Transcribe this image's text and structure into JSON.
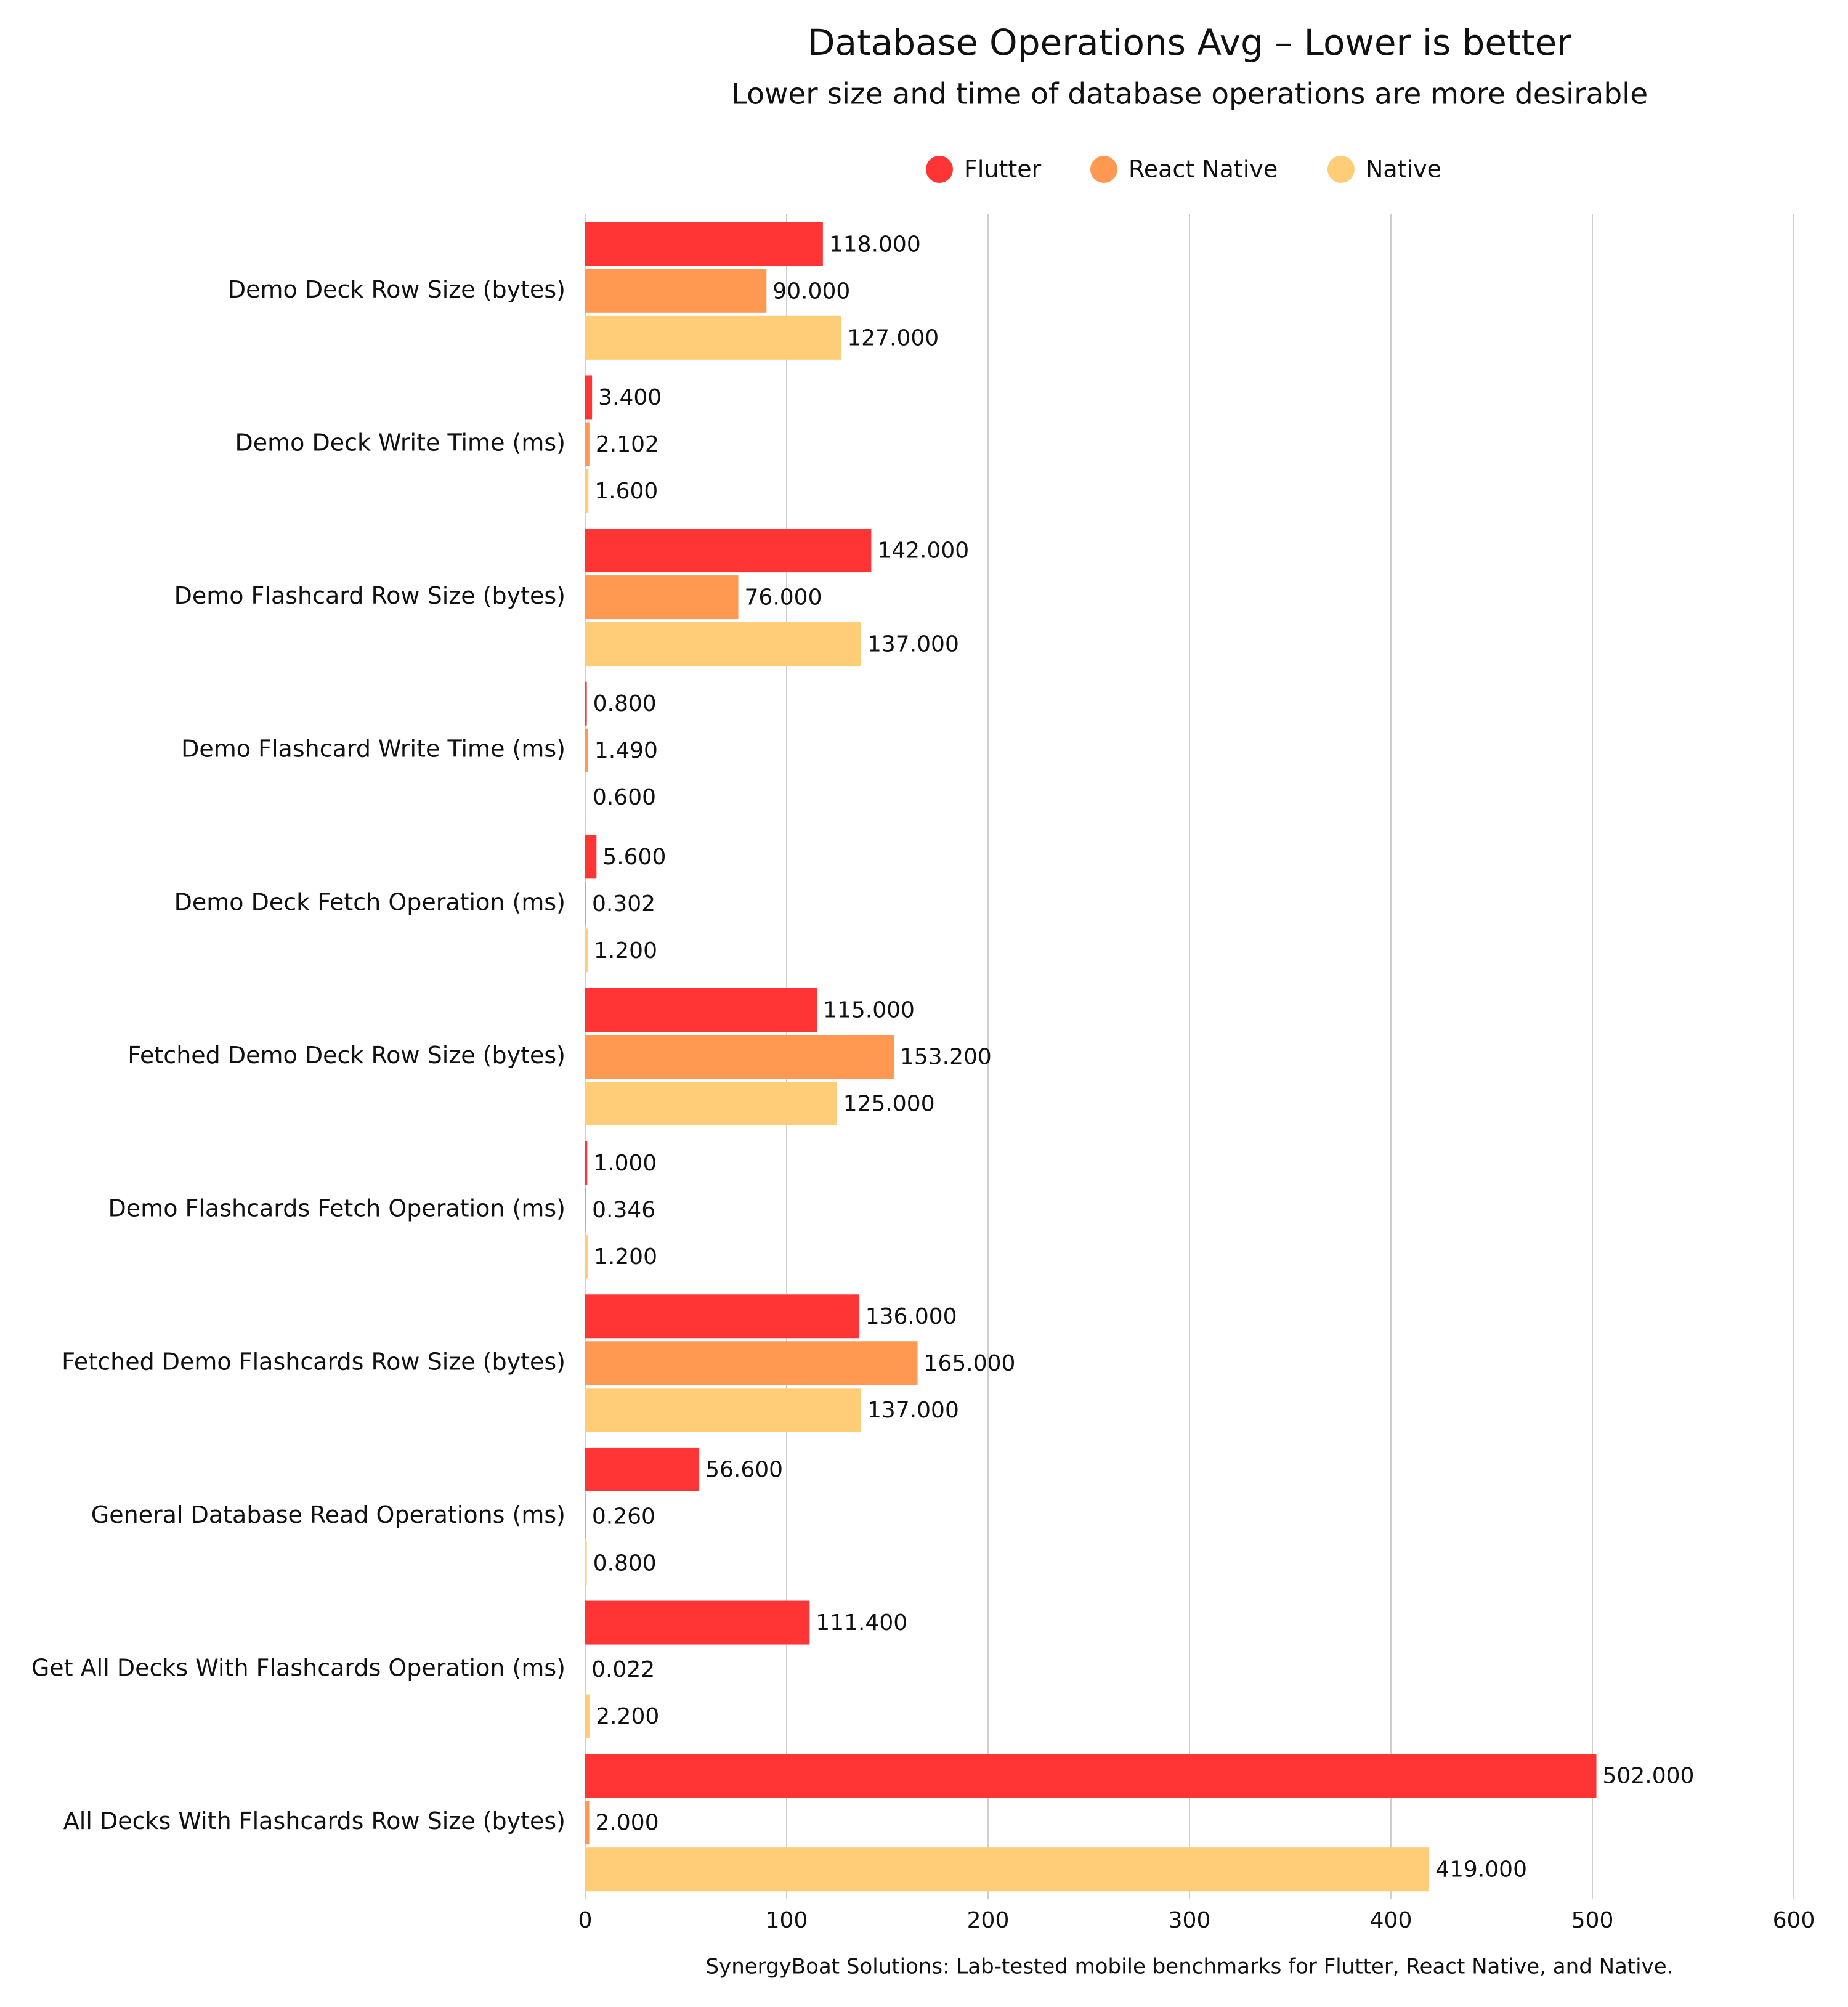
{
  "chart_data": {
    "type": "bar",
    "orientation": "horizontal",
    "title": "Database Operations Avg – Lower is better",
    "subtitle": "Lower size and time of database operations are more desirable",
    "footer": "SynergyBoat Solutions: Lab-tested mobile benchmarks for Flutter, React Native, and Native.",
    "categories": [
      "Demo Deck Row Size (bytes)",
      "Demo Deck Write Time (ms)",
      "Demo Flashcard Row Size (bytes)",
      "Demo Flashcard Write Time (ms)",
      "Demo Deck Fetch Operation (ms)",
      "Fetched Demo Deck Row Size (bytes)",
      "Demo Flashcards Fetch Operation (ms)",
      "Fetched Demo Flashcards Row Size (bytes)",
      "General Database Read Operations (ms)",
      "Get All Decks With Flashcards Operation (ms)",
      "All Decks With Flashcards Row Size (bytes)"
    ],
    "series": [
      {
        "name": "Flutter",
        "color": "#ff3535",
        "values": [
          118,
          3.4,
          142,
          0.8,
          5.6,
          115,
          1,
          136,
          56.6,
          111.4,
          502
        ],
        "value_labels": [
          "118.000",
          "3.400",
          "142.000",
          "0.800",
          "5.600",
          "115.000",
          "1.000",
          "136.000",
          "56.600",
          "111.400",
          "502.000"
        ]
      },
      {
        "name": "React Native",
        "color": "#ff9850",
        "values": [
          90,
          2.102,
          76,
          1.49,
          0.302,
          153.2,
          0.346,
          165,
          0.26,
          0.022,
          2
        ],
        "value_labels": [
          "90.000",
          "2.102",
          "76.000",
          "1.490",
          "0.302",
          "153.200",
          "0.346",
          "165.000",
          "0.260",
          "0.022",
          "2.000"
        ]
      },
      {
        "name": "Native",
        "color": "#ffcc78",
        "values": [
          127,
          1.6,
          137,
          0.6,
          1.2,
          125,
          1.2,
          137,
          0.8,
          2.2,
          419
        ],
        "value_labels": [
          "127.000",
          "1.600",
          "137.000",
          "0.600",
          "1.200",
          "125.000",
          "1.200",
          "137.000",
          "0.800",
          "2.200",
          "419.000"
        ]
      }
    ],
    "xlim": [
      0,
      600
    ],
    "xticks": [
      0,
      100,
      200,
      300,
      400,
      500,
      600
    ],
    "grid": true,
    "legend": "top"
  }
}
